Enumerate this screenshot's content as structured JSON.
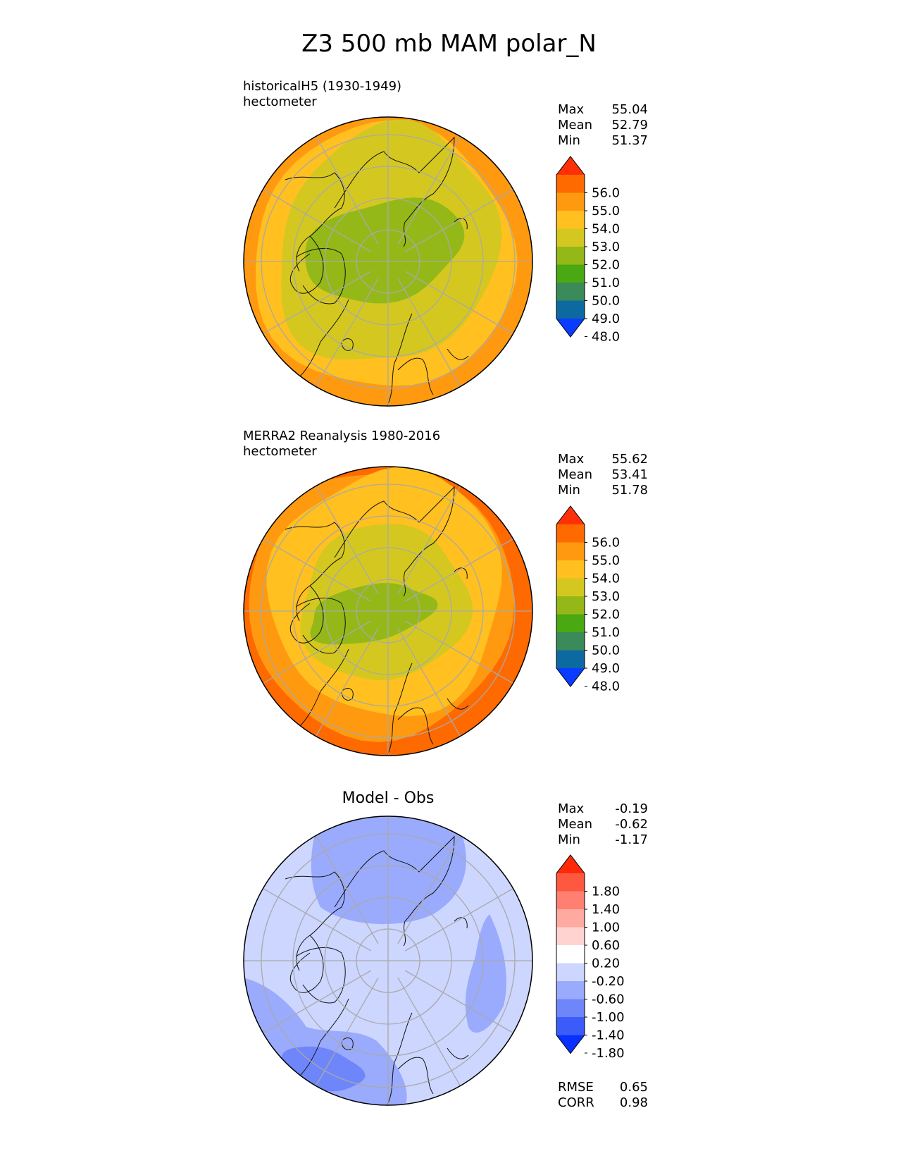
{
  "title": "Z3 500 mb MAM polar_N",
  "panels": [
    {
      "id": "model",
      "title_line1": "historicalH5 (1930-1949)",
      "title_line2": "hectometer",
      "stats": [
        {
          "label": "Max",
          "value": "55.04"
        },
        {
          "label": "Mean",
          "value": "52.79"
        },
        {
          "label": "Min",
          "value": "51.37"
        }
      ],
      "colorbar": {
        "ticks": [
          "56.0",
          "55.0",
          "54.0",
          "53.0",
          "52.0",
          "51.0",
          "50.0",
          "49.0",
          "48.0"
        ],
        "colors": [
          "#ff3008",
          "#ff6a00",
          "#ff9a10",
          "#ffc020",
          "#d4c820",
          "#94b818",
          "#4aa812",
          "#3a8a5a",
          "#0d6aa0",
          "#0a3cff"
        ]
      },
      "map_colors": {
        "outer": "#ff9a10",
        "ring2": "#ffc020",
        "ring3": "#d4c820",
        "core": "#94b818"
      }
    },
    {
      "id": "obs",
      "title_line1": "MERRA2 Reanalysis 1980-2016",
      "title_line2": "hectometer",
      "stats": [
        {
          "label": "Max",
          "value": "55.62"
        },
        {
          "label": "Mean",
          "value": "53.41"
        },
        {
          "label": "Min",
          "value": "51.78"
        }
      ],
      "colorbar": {
        "ticks": [
          "56.0",
          "55.0",
          "54.0",
          "53.0",
          "52.0",
          "51.0",
          "50.0",
          "49.0",
          "48.0"
        ],
        "colors": [
          "#ff3008",
          "#ff6a00",
          "#ff9a10",
          "#ffc020",
          "#d4c820",
          "#94b818",
          "#4aa812",
          "#3a8a5a",
          "#0d6aa0",
          "#0a3cff"
        ]
      },
      "map_colors": {
        "edge": "#ff6a00",
        "outer": "#ff9a10",
        "ring2": "#ffc020",
        "ring3": "#d4c820",
        "core": "#94b818"
      }
    },
    {
      "id": "diff",
      "title_center": "Model - Obs",
      "stats": [
        {
          "label": "Max",
          "value": "-0.19"
        },
        {
          "label": "Mean",
          "value": "-0.62"
        },
        {
          "label": "Min",
          "value": "-1.17"
        }
      ],
      "colorbar": {
        "ticks": [
          "1.80",
          "1.40",
          "1.00",
          "0.60",
          "0.20",
          "-0.20",
          "-0.60",
          "-1.00",
          "-1.40",
          "-1.80"
        ],
        "colors": [
          "#ff2a08",
          "#ff5840",
          "#ff8070",
          "#ffaaa0",
          "#ffd4d0",
          "#ffffff",
          "#ccd6ff",
          "#9aaafc",
          "#6e86fa",
          "#3c5cfa",
          "#0a30ff"
        ]
      },
      "map_colors": {
        "light": "#ccd6ff",
        "mid": "#9aaafc",
        "dark": "#6e86fa"
      },
      "footer": [
        {
          "label": "RMSE",
          "value": "0.65"
        },
        {
          "label": "CORR",
          "value": "0.98"
        }
      ]
    }
  ]
}
